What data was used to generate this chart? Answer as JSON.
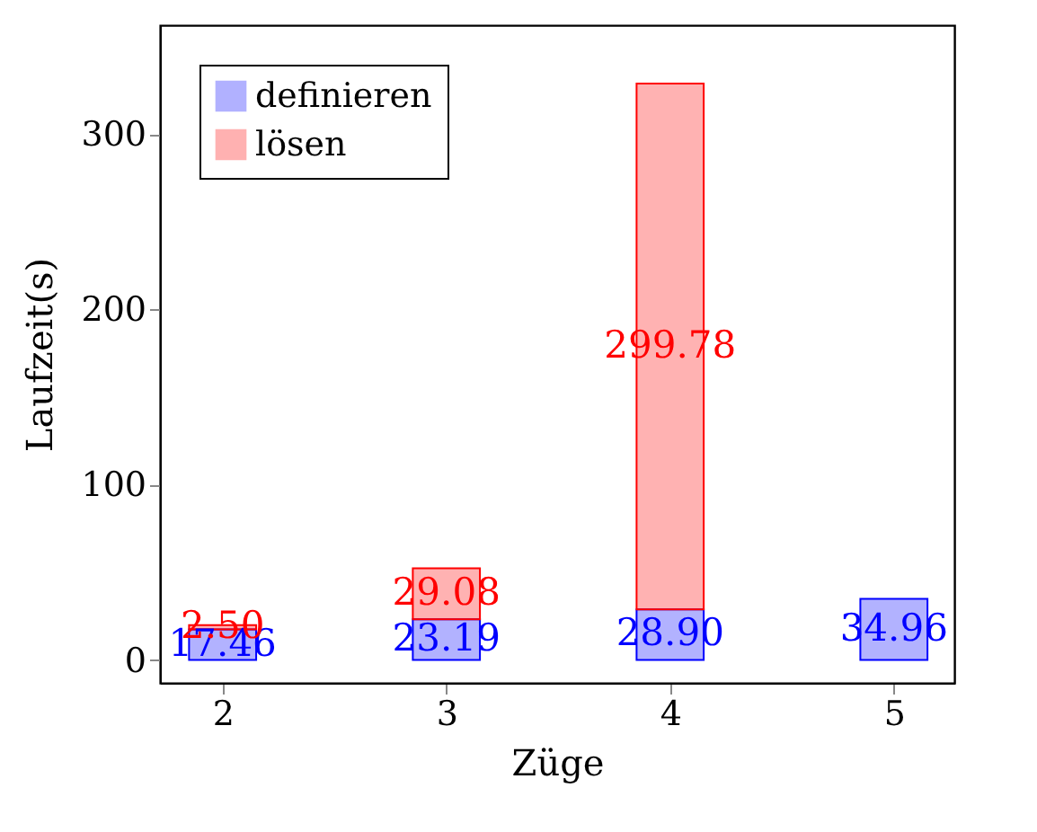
{
  "chart_data": {
    "type": "bar",
    "stacked": true,
    "xlabel": "Züge",
    "ylabel": "Laufzeit(s)",
    "x": [
      2,
      3,
      4,
      5
    ],
    "series": [
      {
        "name": "definieren",
        "color": "#0000ff",
        "values": [
          17.46,
          23.19,
          28.9,
          34.96
        ],
        "value_labels": [
          "17.46",
          "23.19",
          "28.90",
          "34.96"
        ]
      },
      {
        "name": "lösen",
        "color": "#ff0000",
        "values": [
          2.5,
          29.08,
          299.78,
          null
        ],
        "value_labels": [
          "2.50",
          "29.08",
          "299.78",
          null
        ]
      }
    ],
    "xlim": [
      1.72,
      5.27
    ],
    "xticks": [
      2,
      3,
      4,
      5
    ],
    "ylim": [
      -13,
      362
    ],
    "yticks": [
      0,
      100,
      200,
      300
    ],
    "grid": false,
    "legend": "top left"
  }
}
